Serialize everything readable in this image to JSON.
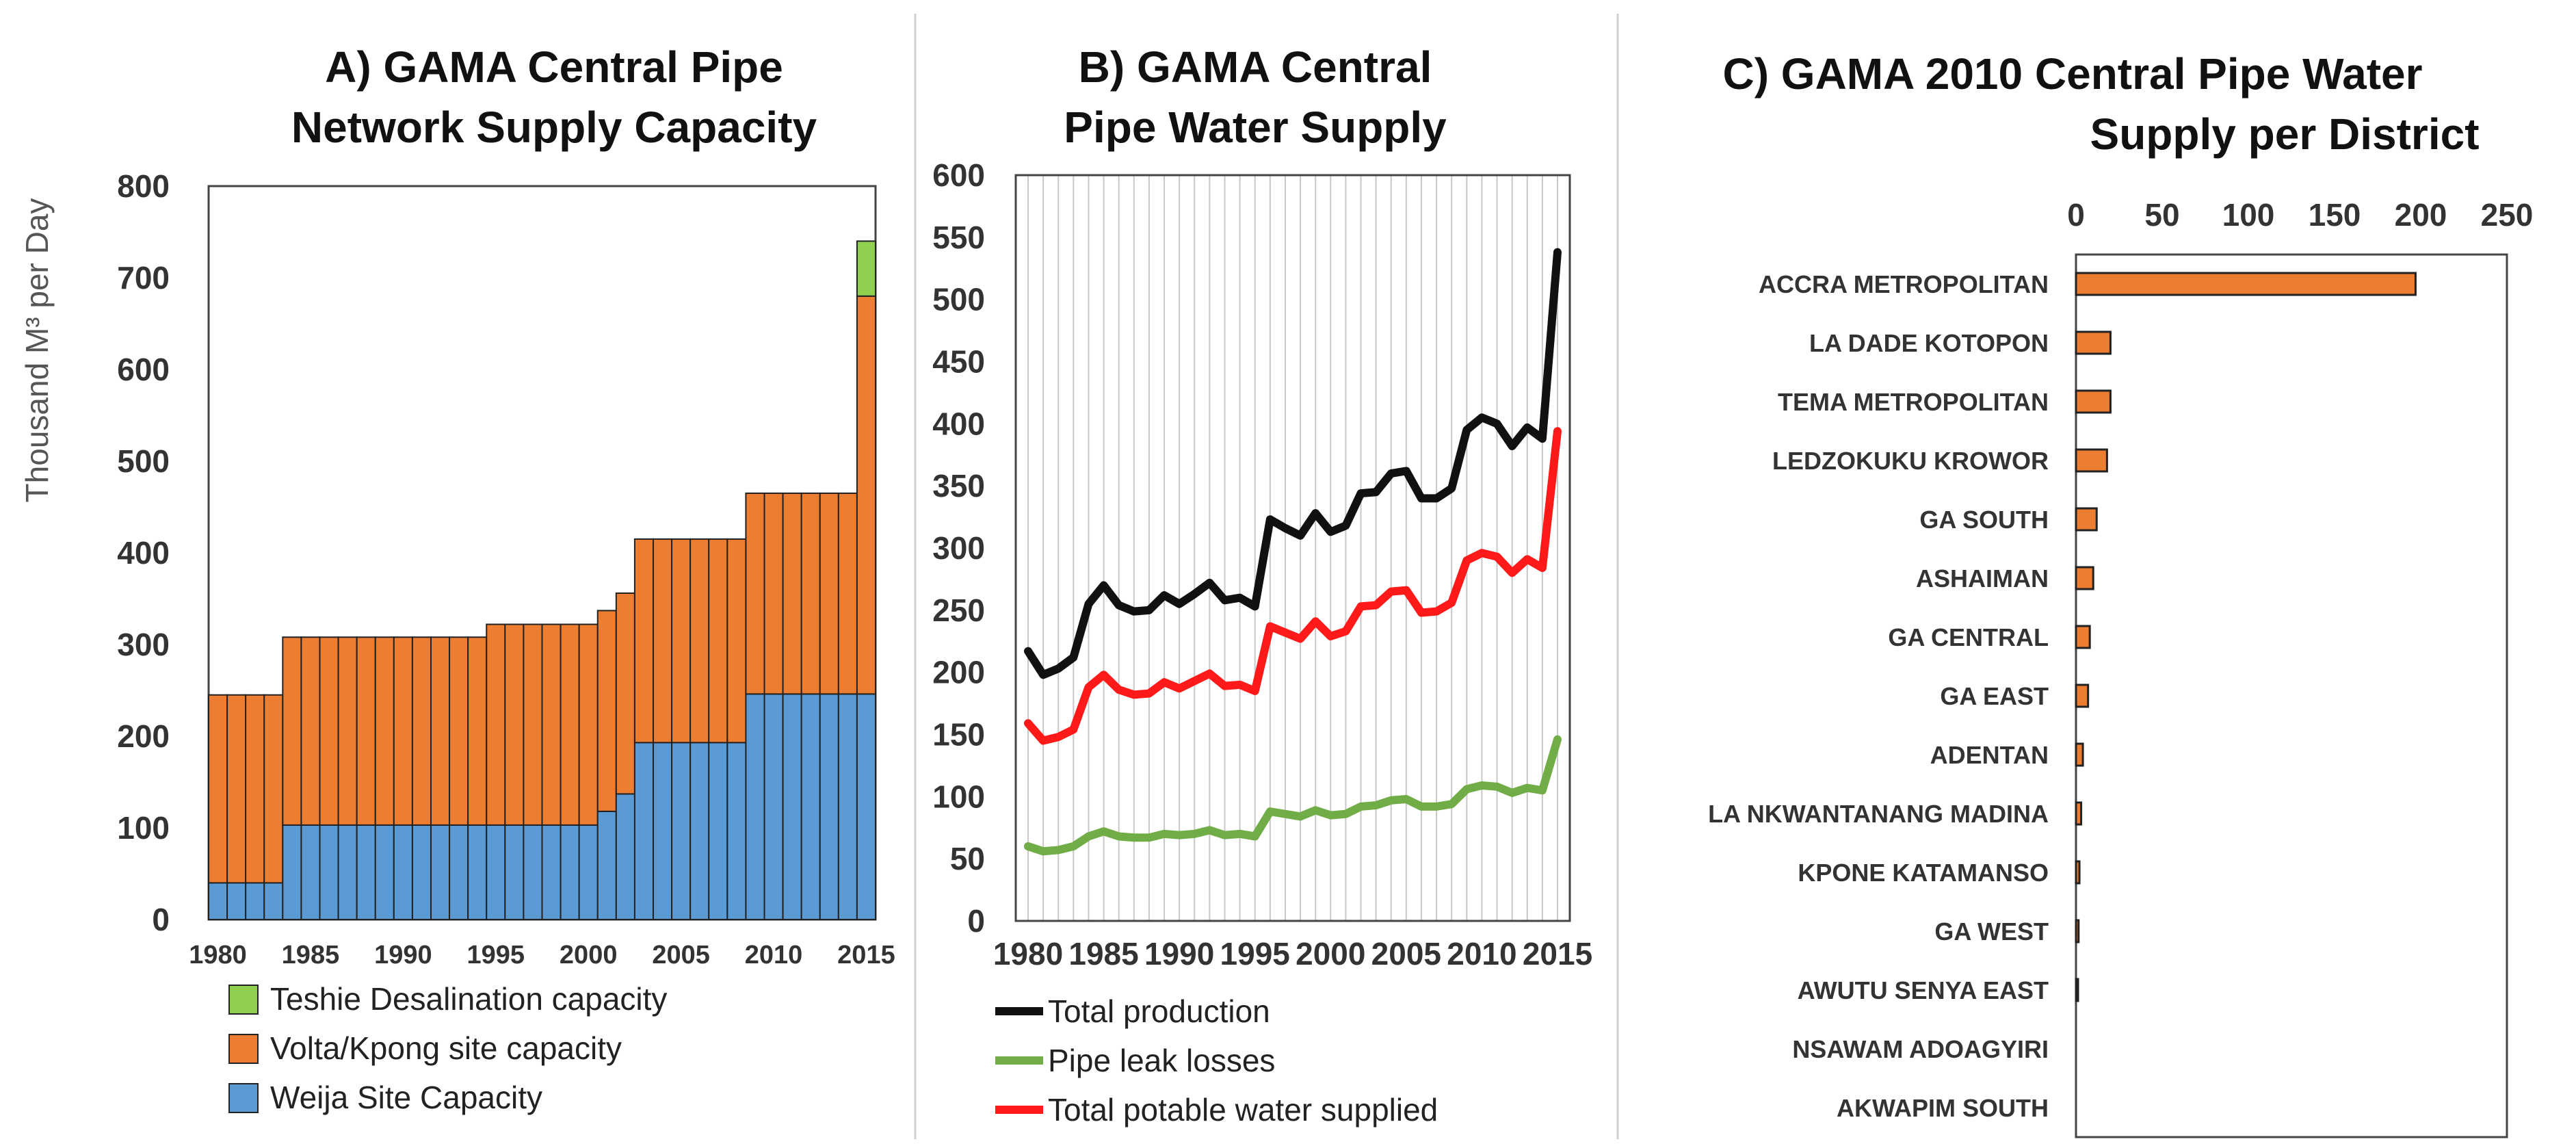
{
  "colors": {
    "weija": "#5b9bd5",
    "volta": "#ed7d31",
    "teshie": "#8fd14f",
    "production": "#111111",
    "leaks": "#70ad47",
    "potable": "#ff1a1a",
    "bar_outline": "#222222"
  },
  "chart_data": [
    {
      "type": "bar",
      "stacked": true,
      "title_lines": [
        "A) GAMA Central Pipe",
        "Network  Supply Capacity"
      ],
      "ylabel": "Thousand M³ per Day",
      "ylim": [
        0,
        800
      ],
      "yticks": [
        0,
        100,
        200,
        300,
        400,
        500,
        600,
        700,
        800
      ],
      "xticks": [
        "1980",
        "1985",
        "1990",
        "1995",
        "2000",
        "2005",
        "2010",
        "2015"
      ],
      "categories": [
        1980,
        1981,
        1982,
        1983,
        1984,
        1985,
        1986,
        1987,
        1988,
        1989,
        1990,
        1991,
        1992,
        1993,
        1994,
        1995,
        1996,
        1997,
        1998,
        1999,
        2000,
        2001,
        2002,
        2003,
        2004,
        2005,
        2006,
        2007,
        2008,
        2009,
        2010,
        2011,
        2012,
        2013,
        2014,
        2015
      ],
      "series": [
        {
          "name": "Weija Site Capacity",
          "values": [
            40,
            40,
            40,
            40,
            103,
            103,
            103,
            103,
            103,
            103,
            103,
            103,
            103,
            103,
            103,
            103,
            103,
            103,
            103,
            103,
            103,
            118,
            137,
            193,
            193,
            193,
            193,
            193,
            193,
            246,
            246,
            246,
            246,
            246,
            246,
            246
          ]
        },
        {
          "name": "Volta/Kpong site capacity",
          "values": [
            205,
            205,
            205,
            205,
            205,
            205,
            205,
            205,
            205,
            205,
            205,
            205,
            205,
            205,
            205,
            219,
            219,
            219,
            219,
            219,
            219,
            219,
            219,
            222,
            222,
            222,
            222,
            222,
            222,
            219,
            219,
            219,
            219,
            219,
            219,
            434
          ]
        },
        {
          "name": "Teshie Desalination capacity",
          "values": [
            0,
            0,
            0,
            0,
            0,
            0,
            0,
            0,
            0,
            0,
            0,
            0,
            0,
            0,
            0,
            0,
            0,
            0,
            0,
            0,
            0,
            0,
            0,
            0,
            0,
            0,
            0,
            0,
            0,
            0,
            0,
            0,
            0,
            0,
            0,
            60
          ]
        }
      ],
      "legend": [
        "Teshie Desalination capacity",
        "Volta/Kpong site capacity",
        "Weija Site Capacity"
      ],
      "legend_position": "bottom"
    },
    {
      "type": "line",
      "title_lines": [
        "B) GAMA Central",
        "Pipe Water Supply"
      ],
      "ylim": [
        0,
        600
      ],
      "yticks": [
        0,
        50,
        100,
        150,
        200,
        250,
        300,
        350,
        400,
        450,
        500,
        550,
        600
      ],
      "xticks": [
        "1980",
        "1985",
        "1990",
        "1995",
        "2000",
        "2005",
        "2010",
        "2015"
      ],
      "grid": "vertical",
      "x": [
        1980,
        1981,
        1982,
        1983,
        1984,
        1985,
        1986,
        1987,
        1988,
        1989,
        1990,
        1991,
        1992,
        1993,
        1994,
        1995,
        1996,
        1997,
        1998,
        1999,
        2000,
        2001,
        2002,
        2003,
        2004,
        2005,
        2006,
        2007,
        2008,
        2009,
        2010,
        2011,
        2012,
        2013,
        2014,
        2015
      ],
      "series": [
        {
          "name": "Total production",
          "values": [
            217,
            198,
            203,
            212,
            255,
            270,
            254,
            249,
            250,
            262,
            255,
            263,
            272,
            258,
            260,
            253,
            323,
            316,
            310,
            328,
            313,
            318,
            344,
            345,
            360,
            362,
            340,
            340,
            348,
            395,
            405,
            400,
            382,
            397,
            388,
            538
          ]
        },
        {
          "name": "Pipe leak losses",
          "values": [
            60,
            56,
            57,
            60,
            68,
            72,
            68,
            67,
            67,
            70,
            69,
            70,
            73,
            69,
            70,
            68,
            88,
            86,
            84,
            89,
            85,
            86,
            92,
            93,
            97,
            98,
            92,
            92,
            94,
            106,
            109,
            108,
            103,
            107,
            105,
            146
          ]
        },
        {
          "name": "Total potable water supplied",
          "values": [
            159,
            145,
            148,
            154,
            188,
            198,
            186,
            182,
            183,
            192,
            187,
            193,
            199,
            189,
            190,
            185,
            237,
            232,
            227,
            241,
            229,
            233,
            253,
            254,
            265,
            266,
            248,
            249,
            256,
            290,
            296,
            293,
            280,
            291,
            284,
            394
          ]
        }
      ],
      "legend": [
        "Total production",
        "Pipe leak losses",
        "Total potable water supplied"
      ],
      "legend_position": "bottom"
    },
    {
      "type": "bar",
      "orientation": "horizontal",
      "title_lines": [
        "C) GAMA 2010 Central Pipe Water",
        "Supply per District"
      ],
      "xlim": [
        0,
        250
      ],
      "xticks": [
        0,
        50,
        100,
        150,
        200,
        250
      ],
      "xaxis_position": "top",
      "categories": [
        "ACCRA METROPOLITAN",
        "LA DADE KOTOPON",
        "TEMA METROPOLITAN",
        "LEDZOKUKU KROWOR",
        "GA SOUTH",
        "ASHAIMAN",
        "GA CENTRAL",
        "GA EAST",
        "ADENTAN",
        "LA NKWANTANANG MADINA",
        "KPONE KATAMANSO",
        "GA WEST",
        "AWUTU SENYA EAST",
        "NSAWAM ADOAGYIRI",
        "AKWAPIM SOUTH"
      ],
      "values": [
        197,
        20,
        20,
        18,
        12,
        10,
        8,
        7,
        4,
        3,
        2,
        1.5,
        0.8,
        0,
        0
      ]
    }
  ]
}
